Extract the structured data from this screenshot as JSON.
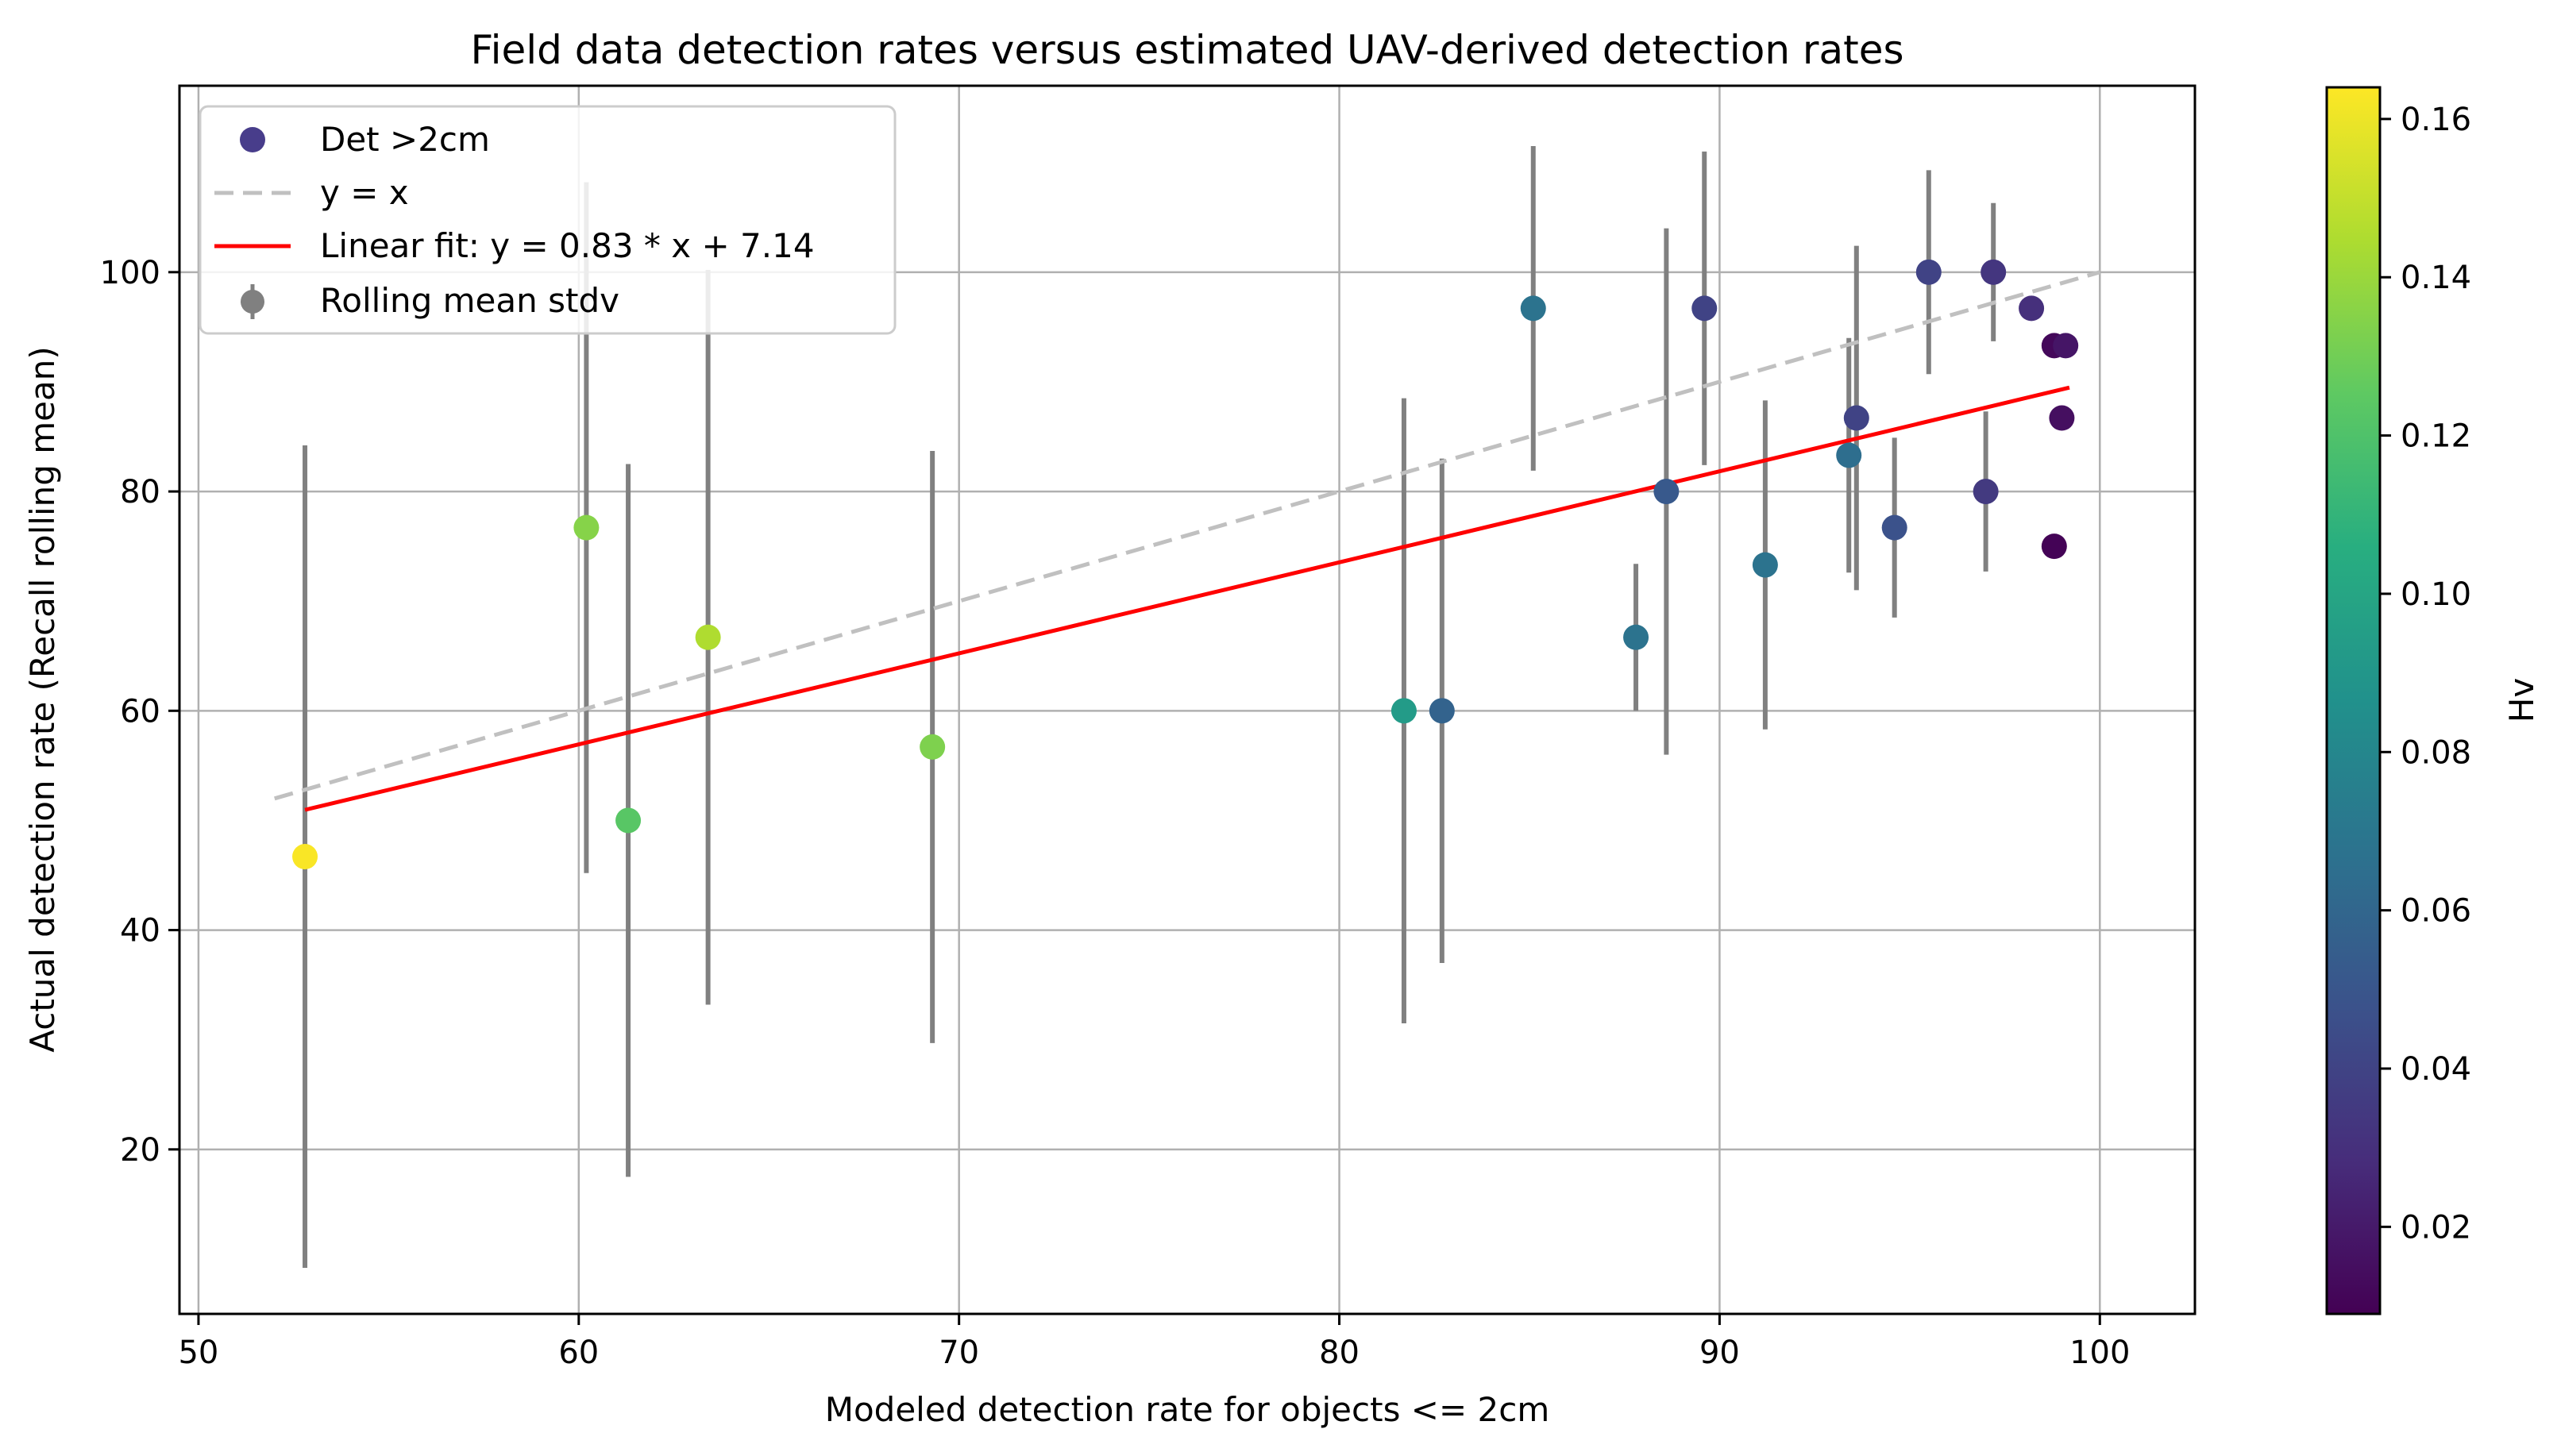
{
  "chart_data": {
    "type": "scatter",
    "title": "Field data detection rates versus estimated UAV-derived detection rates",
    "xlabel": "Modeled detection rate for objects <= 2cm",
    "ylabel": "Actual detection rate (Recall rolling mean)",
    "xlim": [
      49.5,
      102.5
    ],
    "ylim": [
      5,
      117
    ],
    "xticks": [
      50,
      60,
      70,
      80,
      90,
      100
    ],
    "yticks": [
      20,
      40,
      60,
      80,
      100
    ],
    "grid": true,
    "legend_position": "top-left",
    "legend": {
      "scatter": "Det >2cm",
      "identity": "y = x",
      "fit": "Linear fit: y = 0.83 * x + 7.14",
      "errorbar": "Rolling mean stdv"
    },
    "identity_line": {
      "x": [
        52,
        100
      ],
      "color": "#c0c0c0"
    },
    "fit_line": {
      "slope": 0.83,
      "intercept": 7.14,
      "x": [
        52.8,
        99.2
      ],
      "color": "#ff0000"
    },
    "errorbar_color": "#808080",
    "colorbar": {
      "label": "Hv",
      "range": [
        0.009,
        0.164
      ],
      "ticks": [
        "0.02",
        "0.04",
        "0.06",
        "0.08",
        "0.10",
        "0.12",
        "0.14",
        "0.16"
      ],
      "tick_values": [
        0.02,
        0.04,
        0.06,
        0.08,
        0.1,
        0.12,
        0.14,
        0.16
      ]
    },
    "points": [
      {
        "x": 52.8,
        "y": 46.7,
        "std": 37.5,
        "hv": 0.163
      },
      {
        "x": 60.2,
        "y": 76.7,
        "std": 31.5,
        "hv": 0.135
      },
      {
        "x": 61.3,
        "y": 50.0,
        "std": 32.5,
        "hv": 0.123
      },
      {
        "x": 63.4,
        "y": 66.7,
        "std": 33.5,
        "hv": 0.145
      },
      {
        "x": 69.3,
        "y": 56.7,
        "std": 27.0,
        "hv": 0.133
      },
      {
        "x": 81.7,
        "y": 60.0,
        "std": 28.5,
        "hv": 0.093
      },
      {
        "x": 82.7,
        "y": 60.0,
        "std": 23.0,
        "hv": 0.058
      },
      {
        "x": 85.1,
        "y": 96.7,
        "std": 14.8,
        "hv": 0.068
      },
      {
        "x": 87.8,
        "y": 66.7,
        "std": 6.7,
        "hv": 0.068
      },
      {
        "x": 88.6,
        "y": 80.0,
        "std": 24.0,
        "hv": 0.052
      },
      {
        "x": 89.6,
        "y": 96.7,
        "std": 14.3,
        "hv": 0.04
      },
      {
        "x": 91.2,
        "y": 73.3,
        "std": 15.0,
        "hv": 0.068
      },
      {
        "x": 93.4,
        "y": 83.3,
        "std": 10.7,
        "hv": 0.065
      },
      {
        "x": 93.6,
        "y": 86.7,
        "std": 15.7,
        "hv": 0.04
      },
      {
        "x": 94.6,
        "y": 76.7,
        "std": 8.2,
        "hv": 0.048
      },
      {
        "x": 95.5,
        "y": 100.0,
        "std": 9.3,
        "hv": 0.04
      },
      {
        "x": 97.0,
        "y": 80.0,
        "std": 7.3,
        "hv": 0.035
      },
      {
        "x": 97.2,
        "y": 100.0,
        "std": 6.3,
        "hv": 0.033
      },
      {
        "x": 98.2,
        "y": 96.7,
        "std": 0,
        "hv": 0.03
      },
      {
        "x": 98.8,
        "y": 93.3,
        "std": 0,
        "hv": 0.012
      },
      {
        "x": 99.1,
        "y": 93.3,
        "std": 0,
        "hv": 0.018
      },
      {
        "x": 99.0,
        "y": 86.7,
        "std": 0,
        "hv": 0.015
      },
      {
        "x": 98.8,
        "y": 75.0,
        "std": 0,
        "hv": 0.01
      }
    ]
  }
}
